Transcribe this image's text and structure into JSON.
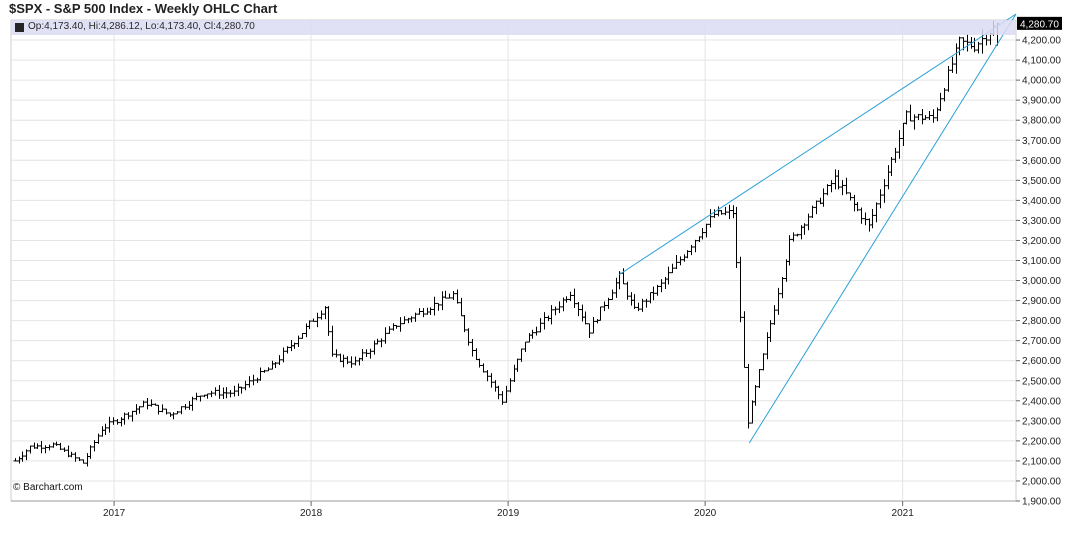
{
  "header": {
    "title": "$SPX - S&P 500 Index - Weekly OHLC Chart",
    "ohlc_readout": "Op:4,173.40, Hi:4,286.12, Lo:4,173.40, Cl:4,280.70"
  },
  "watermark": "© Barchart.com",
  "colors": {
    "bar": "#000000",
    "trendline": "#2aa0d8",
    "grid": "#e4e4e4",
    "header_band": "#dcdcf4",
    "last_price_box": "#000000"
  },
  "chart_data": {
    "type": "ohlc",
    "interval": "weekly",
    "ylim": [
      1900,
      4300
    ],
    "y_ticks": [
      "1,900.00",
      "2,000.00",
      "2,100.00",
      "2,200.00",
      "2,300.00",
      "2,400.00",
      "2,500.00",
      "2,600.00",
      "2,700.00",
      "2,800.00",
      "2,900.00",
      "3,000.00",
      "3,100.00",
      "3,200.00",
      "3,300.00",
      "3,400.00",
      "3,500.00",
      "3,600.00",
      "3,700.00",
      "3,800.00",
      "3,900.00",
      "4,000.00",
      "4,100.00",
      "4,200.00"
    ],
    "x_ticks": [
      "2017",
      "2018",
      "2019",
      "2020",
      "2021"
    ],
    "last_price_label": "4,280.70",
    "last_bar": {
      "open": 4173.4,
      "high": 4286.12,
      "low": 4173.4,
      "close": 4280.7
    },
    "approx_close_path": [
      [
        "2016-07-01",
        2100
      ],
      [
        "2016-07-29",
        2170
      ],
      [
        "2016-09-09",
        2180
      ],
      [
        "2016-11-04",
        2090
      ],
      [
        "2016-12-09",
        2260
      ],
      [
        "2017-03-01",
        2390
      ],
      [
        "2017-04-14",
        2330
      ],
      [
        "2017-06-16",
        2440
      ],
      [
        "2017-08-11",
        2440
      ],
      [
        "2017-10-20",
        2570
      ],
      [
        "2018-01-26",
        2870
      ],
      [
        "2018-02-09",
        2620
      ],
      [
        "2018-03-23",
        2590
      ],
      [
        "2018-06-08",
        2780
      ],
      [
        "2018-09-21",
        2930
      ],
      [
        "2018-10-26",
        2650
      ],
      [
        "2018-12-21",
        2400
      ],
      [
        "2019-02-01",
        2700
      ],
      [
        "2019-04-26",
        2940
      ],
      [
        "2019-05-31",
        2750
      ],
      [
        "2019-07-26",
        3020
      ],
      [
        "2019-08-23",
        2850
      ],
      [
        "2019-10-11",
        2980
      ],
      [
        "2020-01-17",
        3330
      ],
      [
        "2020-02-21",
        3340
      ],
      [
        "2020-03-20",
        2300
      ],
      [
        "2020-06-05",
        3190
      ],
      [
        "2020-08-28",
        3510
      ],
      [
        "2020-10-30",
        3270
      ],
      [
        "2021-01-08",
        3820
      ],
      [
        "2021-02-26",
        3810
      ],
      [
        "2021-04-16",
        4190
      ],
      [
        "2021-05-14",
        4170
      ],
      [
        "2021-06-25",
        4280
      ]
    ],
    "trendlines": [
      {
        "from": [
          "2019-07-26",
          3030
        ],
        "to": [
          "2021-07-30",
          4330
        ]
      },
      {
        "from": [
          "2020-03-23",
          2190
        ],
        "to": [
          "2021-07-30",
          4330
        ]
      }
    ]
  }
}
